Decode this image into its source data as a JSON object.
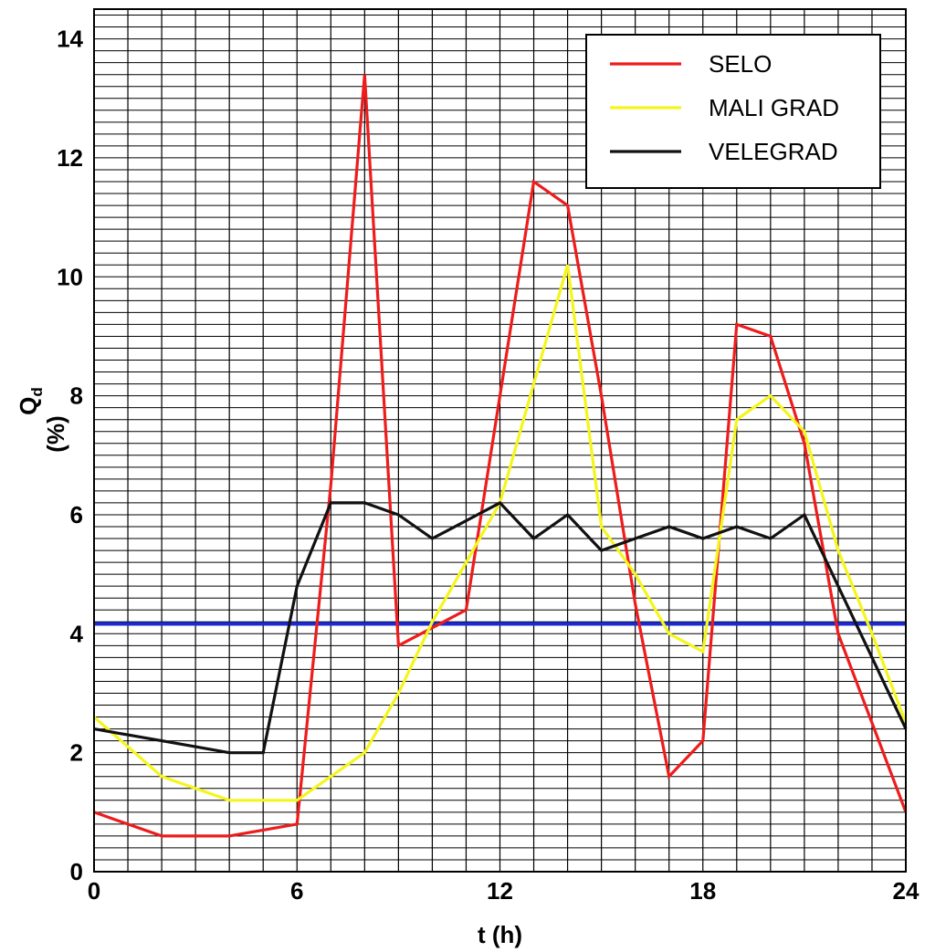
{
  "chart_data": {
    "type": "line",
    "title": "",
    "xlabel": "t (h)",
    "ylabel_main": "Q",
    "ylabel_sub": "d",
    "ylabel_unit": "(%)",
    "xlim": [
      0,
      24
    ],
    "ylim": [
      0,
      14.5
    ],
    "x_ticks": [
      0,
      6,
      12,
      18,
      24
    ],
    "y_ticks": [
      0,
      2,
      4,
      6,
      8,
      10,
      12,
      14
    ],
    "x_tick_labels": [
      "0",
      "6",
      "12",
      "18",
      "24"
    ],
    "y_tick_labels": [
      "0",
      "2",
      "4",
      "6",
      "8",
      "10",
      "12",
      "14"
    ],
    "grid": true,
    "grid_x_step": 1,
    "grid_y_step": 0.2,
    "legend_position": "top-right",
    "x": [
      0,
      1,
      2,
      3,
      4,
      5,
      6,
      7,
      8,
      9,
      10,
      11,
      12,
      13,
      14,
      15,
      16,
      17,
      18,
      19,
      20,
      21,
      22,
      23,
      24
    ],
    "series": [
      {
        "name": "SELO",
        "color": "#ee1c1c",
        "values": [
          1.0,
          0.8,
          0.6,
          0.6,
          0.6,
          0.7,
          0.8,
          6.5,
          13.4,
          3.8,
          4.1,
          4.4,
          8.0,
          11.6,
          11.2,
          8.0,
          4.5,
          1.6,
          2.2,
          9.2,
          9.0,
          7.2,
          4.0,
          2.5,
          1.0
        ]
      },
      {
        "name": "MALI GRAD",
        "color": "#f5f51e",
        "values": [
          2.6,
          2.1,
          1.6,
          1.4,
          1.2,
          1.2,
          1.2,
          1.6,
          2.0,
          3.0,
          4.2,
          5.2,
          6.2,
          8.2,
          10.2,
          5.8,
          5.0,
          4.0,
          3.7,
          7.6,
          8.0,
          7.4,
          5.4,
          4.0,
          2.5
        ]
      },
      {
        "name": "VELEGRAD",
        "color": "#111111",
        "values": [
          2.4,
          2.3,
          2.2,
          2.1,
          2.0,
          2.0,
          4.8,
          6.2,
          6.2,
          6.0,
          5.6,
          5.9,
          6.2,
          5.6,
          6.0,
          5.4,
          5.6,
          5.8,
          5.6,
          5.8,
          5.6,
          6.0,
          4.8,
          3.6,
          2.4
        ]
      }
    ],
    "reference_line": {
      "color": "#1a2bd6",
      "value": 4.1667
    }
  }
}
